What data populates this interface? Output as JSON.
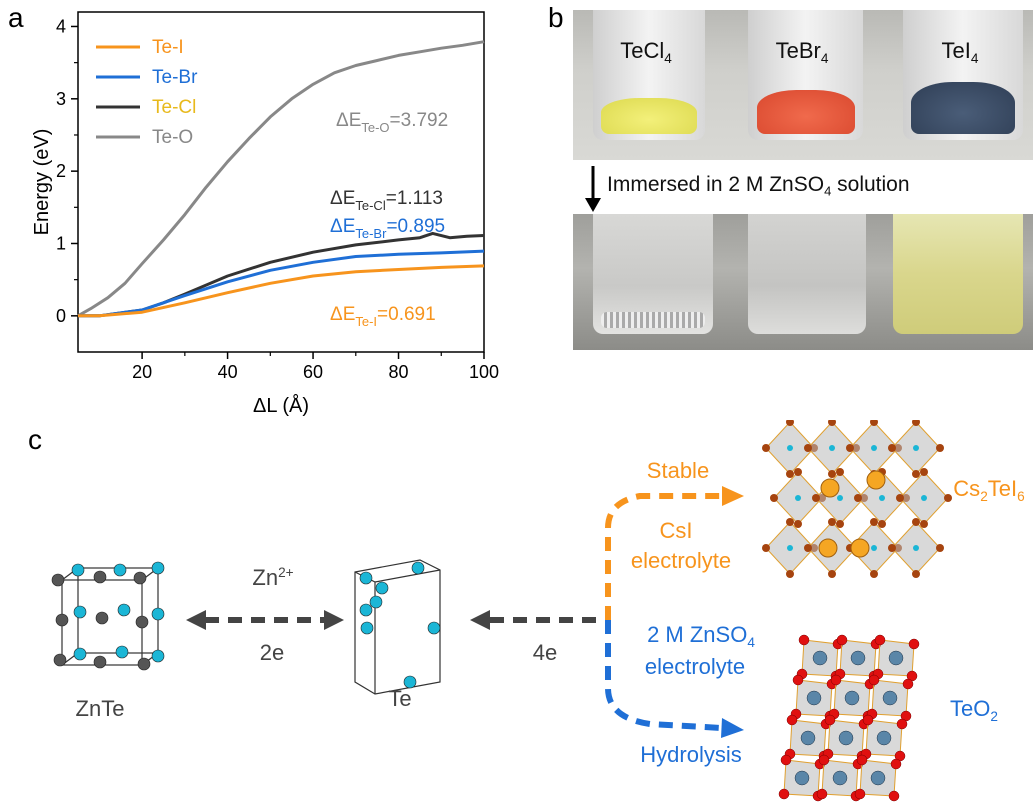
{
  "panel_labels": {
    "a": "a",
    "b": "b",
    "c": "c"
  },
  "chart_data": {
    "type": "line",
    "xlabel": "ΔL (Å)",
    "ylabel": "Energy (eV)",
    "xlim": [
      5,
      100
    ],
    "ylim": [
      -0.5,
      4.2
    ],
    "xticks": [
      20,
      40,
      60,
      80,
      100
    ],
    "yticks": [
      0,
      1,
      2,
      3,
      4
    ],
    "legend_position": "top-left",
    "series": [
      {
        "name": "Te-I",
        "color": "#f7941d",
        "x": [
          5,
          10,
          20,
          30,
          40,
          50,
          60,
          70,
          80,
          90,
          100
        ],
        "y": [
          0,
          0.0,
          0.05,
          0.18,
          0.32,
          0.45,
          0.55,
          0.61,
          0.64,
          0.67,
          0.69
        ]
      },
      {
        "name": "Te-Br",
        "color": "#1f6fd6",
        "x": [
          5,
          10,
          20,
          30,
          40,
          50,
          60,
          70,
          80,
          90,
          100
        ],
        "y": [
          0,
          0.0,
          0.08,
          0.28,
          0.47,
          0.63,
          0.74,
          0.82,
          0.85,
          0.87,
          0.895
        ]
      },
      {
        "name": "Te-Cl",
        "color": "#333333",
        "x": [
          5,
          10,
          20,
          25,
          30,
          40,
          50,
          60,
          70,
          80,
          85,
          88,
          92,
          96,
          100
        ],
        "y": [
          0,
          0.0,
          0.08,
          0.18,
          0.3,
          0.55,
          0.74,
          0.88,
          0.98,
          1.05,
          1.08,
          1.14,
          1.08,
          1.1,
          1.11
        ]
      },
      {
        "name": "Te-O",
        "color": "#888888",
        "x": [
          5,
          8,
          12,
          16,
          20,
          25,
          30,
          35,
          40,
          45,
          50,
          55,
          60,
          65,
          70,
          75,
          80,
          85,
          90,
          95,
          100
        ],
        "y": [
          0,
          0.1,
          0.25,
          0.45,
          0.72,
          1.05,
          1.4,
          1.78,
          2.13,
          2.45,
          2.75,
          3.0,
          3.2,
          3.36,
          3.46,
          3.53,
          3.6,
          3.65,
          3.7,
          3.74,
          3.79
        ]
      }
    ],
    "annotations": [
      {
        "base": "ΔE",
        "sub": "Te-O",
        "value": "=3.792",
        "color": "#888888"
      },
      {
        "base": "ΔE",
        "sub": "Te-Cl",
        "value": "=1.113",
        "color": "#333333"
      },
      {
        "base": "ΔE",
        "sub": "Te-Br",
        "value": "=0.895",
        "color": "#1f6fd6"
      },
      {
        "base": "ΔE",
        "sub": "Te-I",
        "value": "=0.691",
        "color": "#f7941d"
      }
    ]
  },
  "photo_b": {
    "vials_top": [
      {
        "base": "TeCl",
        "sub": "4"
      },
      {
        "base": "TeBr",
        "sub": "4"
      },
      {
        "base": "TeI",
        "sub": "4"
      }
    ],
    "note_prefix": "Immersed in 2 M ZnSO",
    "note_sub": "4",
    "note_suffix": " solution"
  },
  "scheme_c": {
    "znte": "ZnTe",
    "te": "Te",
    "zn_label": "Zn",
    "zn_sup": "2+",
    "two_e": "2e",
    "four_e": "4e",
    "stable": "Stable",
    "csi": "CsI",
    "electrolyte_top": "electrolyte",
    "cs_formula": {
      "a": "Cs",
      "a_sub": "2",
      "b": "TeI",
      "b_sub": "6"
    },
    "zn_electrolyte_1": "2 M ZnSO",
    "zn_electrolyte_1_sub": "4",
    "zn_electrolyte_2": "electrolyte",
    "hydrolysis": "Hydrolysis",
    "teo2": {
      "a": "TeO",
      "a_sub": "2"
    },
    "orange": "#f7941d",
    "blue": "#1f6fd6"
  }
}
